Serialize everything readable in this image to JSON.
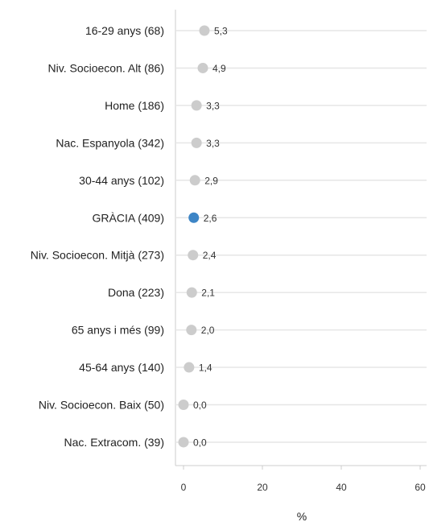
{
  "chart_data": {
    "type": "scatter",
    "orientation": "horizontal-dot",
    "categories": [
      "16-29 anys (68)",
      "Niv. Socioecon. Alt (86)",
      "Home (186)",
      "Nac. Espanyola (342)",
      "30-44 anys (102)",
      "GRÀCIA (409)",
      "Niv. Socioecon. Mitjà (273)",
      "Dona (223)",
      "65 anys i més (99)",
      "45-64 anys (140)",
      "Niv. Socioecon. Baix (50)",
      "Nac. Extracom. (39)"
    ],
    "values": [
      5.3,
      4.9,
      3.3,
      3.3,
      2.9,
      2.6,
      2.4,
      2.1,
      2.0,
      1.4,
      0.0,
      0.0
    ],
    "value_labels": [
      "5,3",
      "4,9",
      "3,3",
      "3,3",
      "2,9",
      "2,6",
      "2,4",
      "2,1",
      "2,0",
      "1,4",
      "0,0",
      "0,0"
    ],
    "highlight_category": "GRÀCIA (409)",
    "xlabel": "%",
    "ylabel": "",
    "xlim": [
      0,
      60
    ],
    "xticks": [
      0,
      20,
      40,
      60
    ],
    "grid": true,
    "colors": {
      "default_point": "#cccccc",
      "highlight_point": "#3d85c6",
      "highlight_text": "#4a97d0",
      "gridline": "#e6e6e6",
      "axis": "#cccccc"
    }
  }
}
